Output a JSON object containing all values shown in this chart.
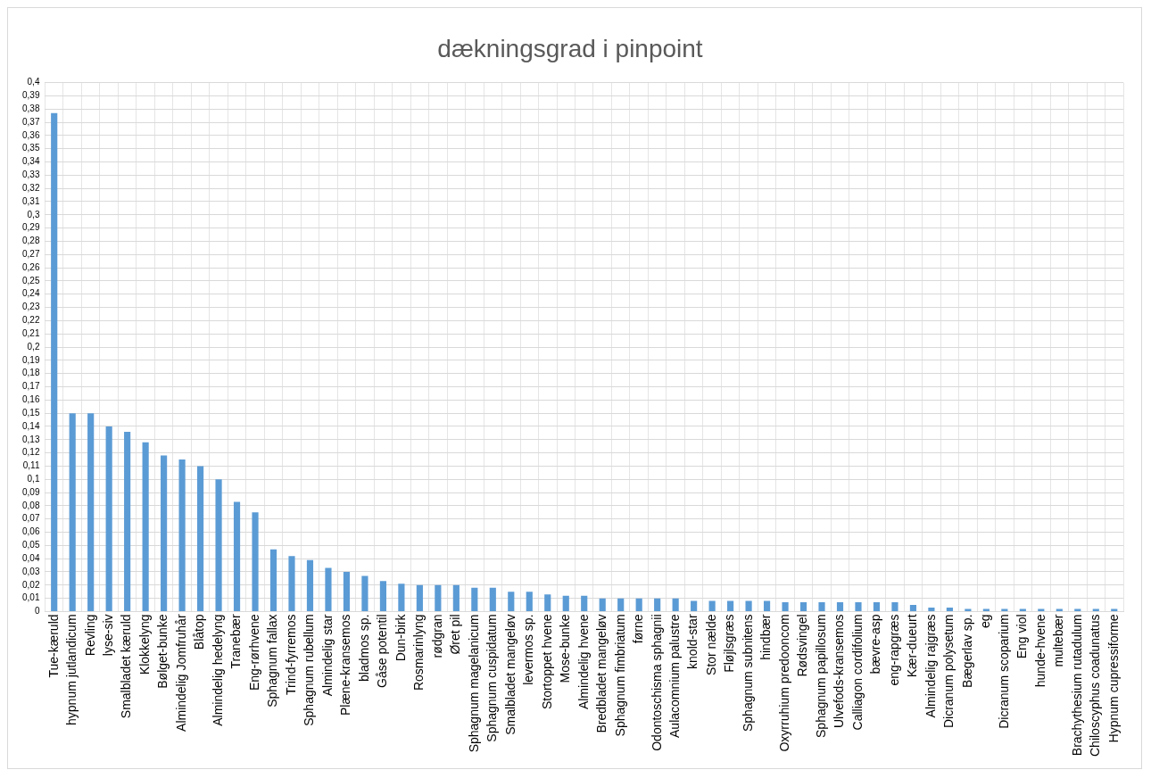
{
  "chart_data": {
    "type": "bar",
    "title": "dækningsgrad i pinpoint",
    "categories": [
      "Tue-kæruld",
      "hypnum jutlandicum",
      "Revling",
      "lyse-siv",
      "Smalbladet kæruld",
      "Klokkelyng",
      "Bølget-bunke",
      "Almindelig Jomfruhår",
      "Blåtop",
      "Almindelig hedelyng",
      "Tranebær",
      "Eng-rørhvene",
      "Sphagnum fallax",
      "Trind-fyrremos",
      "Sphagnum rubellum",
      "Almindelig star",
      "Plæne-kransemos",
      "bladmos sp.",
      "Gåse potentil",
      "Dun-birk",
      "Rosmarinlyng",
      "rødgran",
      "Øret pil",
      "Sphagnum magelanicum",
      "Sphagnum cuspidatum",
      "Smalbladet mangeløv",
      "levermos sp.",
      "Stortoppet hvene",
      "Mose-bunke",
      "Almindelig hvene",
      "Bredbladet mangeløv",
      "Sphagnum fimbriatum",
      "førne",
      "Odontoschisma sphagnii",
      "Aulacomnium palustre",
      "knold-star",
      "Stor nælde",
      "Fløjlsgræs",
      "Sphagnum subnitens",
      "hindbær",
      "Oxyrruhium predooncom",
      "Rødsvingel",
      "Sphagnum papillosum",
      "Ulvefods-kransemos",
      "Calliagon cordifolium",
      "bævre-asp",
      "eng-rapgræs",
      "Kær-dueurt",
      "Almindelig rajgræs",
      "Dicranum polysetum",
      "Bægerlav sp.",
      "eg",
      "Dicranum scoparium",
      "Eng viol",
      "hunde-hvene",
      "multebær",
      "Brachythesium rutadulum",
      "Chiloscyphus coadunatus",
      "Hypnum cupressiforme"
    ],
    "values": [
      0.377,
      0.15,
      0.15,
      0.14,
      0.136,
      0.128,
      0.118,
      0.115,
      0.11,
      0.1,
      0.083,
      0.075,
      0.047,
      0.042,
      0.039,
      0.033,
      0.03,
      0.027,
      0.023,
      0.021,
      0.02,
      0.02,
      0.02,
      0.018,
      0.018,
      0.015,
      0.015,
      0.013,
      0.012,
      0.012,
      0.01,
      0.01,
      0.01,
      0.01,
      0.01,
      0.008,
      0.008,
      0.008,
      0.008,
      0.008,
      0.007,
      0.007,
      0.007,
      0.007,
      0.007,
      0.007,
      0.007,
      0.005,
      0.003,
      0.003,
      0.002,
      0.002,
      0.002,
      0.002,
      0.002,
      0.002,
      0.002,
      0.002,
      0.002
    ],
    "color": "#5b9bd5",
    "ylim": [
      0,
      0.4
    ],
    "yticks": [
      0,
      {
        "value": 0.01,
        "label": "0,01"
      },
      {
        "value": 0.02,
        "label": "0,02"
      },
      {
        "value": 0.03,
        "label": "0,03"
      },
      {
        "value": 0.04,
        "label": "0,04"
      },
      {
        "value": 0.05,
        "label": "0,05"
      },
      {
        "value": 0.06,
        "label": "0,06"
      },
      {
        "value": 0.07,
        "label": "0,07"
      },
      {
        "value": 0.08,
        "label": "0,08"
      },
      {
        "value": 0.09,
        "label": "0,09"
      },
      {
        "value": 0.1,
        "label": "0,1"
      },
      {
        "value": 0.11,
        "label": "0,11"
      },
      {
        "value": 0.12,
        "label": "0,12"
      },
      {
        "value": 0.13,
        "label": "0,13"
      },
      {
        "value": 0.14,
        "label": "0,14"
      },
      {
        "value": 0.15,
        "label": "0,15"
      },
      {
        "value": 0.16,
        "label": "0,16"
      },
      {
        "value": 0.17,
        "label": "0,17"
      },
      {
        "value": 0.18,
        "label": "0,18"
      },
      {
        "value": 0.19,
        "label": "0,19"
      },
      {
        "value": 0.2,
        "label": "0,2"
      },
      {
        "value": 0.21,
        "label": "0,21"
      },
      {
        "value": 0.22,
        "label": "0,22"
      },
      {
        "value": 0.23,
        "label": "0,23"
      },
      {
        "value": 0.24,
        "label": "0,24"
      },
      {
        "value": 0.25,
        "label": "0,25"
      },
      {
        "value": 0.26,
        "label": "0,26"
      },
      {
        "value": 0.27,
        "label": "0,27"
      },
      {
        "value": 0.28,
        "label": "0,28"
      },
      {
        "value": 0.29,
        "label": "0,29"
      },
      {
        "value": 0.3,
        "label": "0,3"
      },
      {
        "value": 0.31,
        "label": "0,31"
      },
      {
        "value": 0.32,
        "label": "0,32"
      },
      {
        "value": 0.33,
        "label": "0,33"
      },
      {
        "value": 0.34,
        "label": "0,34"
      },
      {
        "value": 0.35,
        "label": "0,35"
      },
      {
        "value": 0.36,
        "label": "0,36"
      },
      {
        "value": 0.37,
        "label": "0,37"
      },
      {
        "value": 0.38,
        "label": "0,38"
      },
      {
        "value": 0.39,
        "label": "0,39"
      },
      {
        "value": 0.4,
        "label": "0,4"
      }
    ],
    "grid": true
  }
}
